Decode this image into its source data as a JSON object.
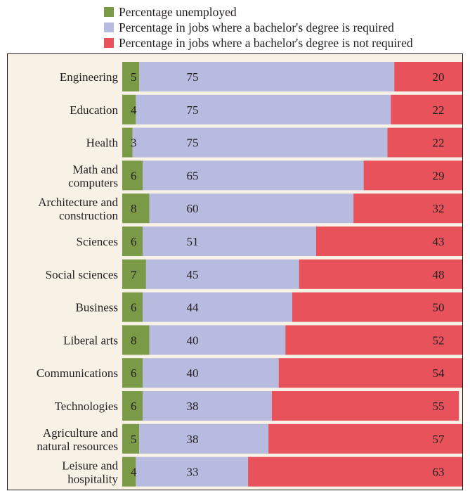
{
  "legend": {
    "items": [
      {
        "label": "Percentage unemployed",
        "color": "#7a9a47"
      },
      {
        "label": "Percentage in jobs where a bachelor's degree is required",
        "color": "#b8bbe0"
      },
      {
        "label": "Percentage in jobs where a bachelor's degree is not required",
        "color": "#e8525b"
      }
    ]
  },
  "chart_data": {
    "type": "bar",
    "orientation": "horizontal",
    "stacked": true,
    "categories": [
      [
        "Engineering"
      ],
      [
        "Education"
      ],
      [
        "Health"
      ],
      [
        "Math and",
        "computers"
      ],
      [
        "Architecture and",
        "construction"
      ],
      [
        "Sciences"
      ],
      [
        "Social sciences"
      ],
      [
        "Business"
      ],
      [
        "Liberal arts"
      ],
      [
        "Communications"
      ],
      [
        "Technologies"
      ],
      [
        "Agriculture and",
        "natural resources"
      ],
      [
        "Leisure and",
        "hospitality"
      ]
    ],
    "series": [
      {
        "name": "Percentage unemployed",
        "color": "#7a9a47",
        "values": [
          5,
          4,
          3,
          6,
          8,
          6,
          7,
          6,
          8,
          6,
          6,
          5,
          4
        ]
      },
      {
        "name": "Percentage in jobs where a bachelor's degree is required",
        "color": "#b8bbe0",
        "values": [
          75,
          75,
          75,
          65,
          60,
          51,
          45,
          44,
          40,
          40,
          38,
          38,
          33
        ]
      },
      {
        "name": "Percentage in jobs where a bachelor's degree is not required",
        "color": "#e8525b",
        "values": [
          20,
          22,
          22,
          29,
          32,
          43,
          48,
          50,
          52,
          54,
          55,
          57,
          63
        ]
      }
    ],
    "xlim": [
      0,
      100
    ],
    "legend_position": "top",
    "grid": false
  }
}
